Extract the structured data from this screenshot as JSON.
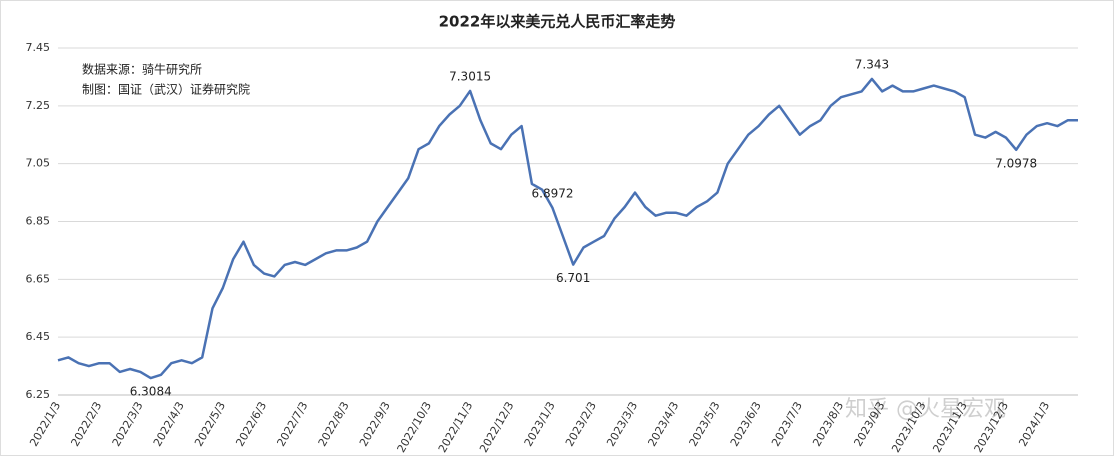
{
  "chart_data": {
    "type": "line",
    "title": "2022年以来美元兑人民币汇率走势",
    "source_lines": [
      "数据来源：骑牛研究所",
      "制图：国证（武汉）证券研究院"
    ],
    "watermark": "知乎 @火星宏观",
    "annotations": [
      "6.3084",
      "7.3015",
      "6.8972",
      "6.701",
      "7.343",
      "7.0978"
    ],
    "categories": [
      "2022/1/3",
      null,
      null,
      null,
      "2022/2/3",
      null,
      null,
      null,
      "2022/3/3",
      null,
      null,
      null,
      "2022/4/3",
      null,
      null,
      null,
      "2022/5/3",
      null,
      null,
      null,
      "2022/6/3",
      null,
      null,
      null,
      "2022/7/3",
      null,
      null,
      null,
      "2022/8/3",
      null,
      null,
      null,
      "2022/9/3",
      null,
      null,
      null,
      "2022/10/3",
      null,
      null,
      null,
      "2022/11/3",
      null,
      null,
      null,
      "2022/12/3",
      null,
      null,
      null,
      "2023/1/3",
      null,
      null,
      null,
      "2023/2/3",
      null,
      null,
      null,
      "2023/3/3",
      null,
      null,
      null,
      "2023/4/3",
      null,
      null,
      null,
      "2023/5/3",
      null,
      null,
      null,
      "2023/6/3",
      null,
      null,
      null,
      "2023/7/3",
      null,
      null,
      null,
      "2023/8/3",
      null,
      null,
      null,
      "2023/9/3",
      null,
      null,
      null,
      "2023/10/3",
      null,
      null,
      null,
      "2023/11/3",
      null,
      null,
      null,
      "2023/12/3",
      null,
      null,
      null,
      "2024/1/3",
      null,
      null,
      null
    ],
    "series": [
      {
        "name": "美元兑人民币",
        "color": "#4a72b4",
        "values": [
          6.37,
          6.38,
          6.36,
          6.35,
          6.36,
          6.36,
          6.33,
          6.34,
          6.33,
          6.3084,
          6.32,
          6.36,
          6.37,
          6.36,
          6.38,
          6.55,
          6.62,
          6.72,
          6.78,
          6.7,
          6.67,
          6.66,
          6.7,
          6.71,
          6.7,
          6.72,
          6.74,
          6.75,
          6.75,
          6.76,
          6.78,
          6.85,
          6.9,
          6.95,
          7.0,
          7.1,
          7.12,
          7.18,
          7.22,
          7.25,
          7.3015,
          7.2,
          7.12,
          7.1,
          7.15,
          7.18,
          6.98,
          6.96,
          6.8972,
          6.8,
          6.701,
          6.76,
          6.78,
          6.8,
          6.86,
          6.9,
          6.95,
          6.9,
          6.87,
          6.88,
          6.88,
          6.87,
          6.9,
          6.92,
          6.95,
          7.05,
          7.1,
          7.15,
          7.18,
          7.22,
          7.25,
          7.2,
          7.15,
          7.18,
          7.2,
          7.25,
          7.28,
          7.29,
          7.3,
          7.343,
          7.3,
          7.32,
          7.3,
          7.3,
          7.31,
          7.32,
          7.31,
          7.3,
          7.28,
          7.15,
          7.14,
          7.16,
          7.14,
          7.0978,
          7.15,
          7.18,
          7.19,
          7.18,
          7.2,
          7.2
        ]
      }
    ],
    "ylim": [
      6.25,
      7.45
    ],
    "yticks": [
      6.25,
      6.45,
      6.65,
      6.85,
      7.05,
      7.25,
      7.45
    ],
    "grid": true
  }
}
